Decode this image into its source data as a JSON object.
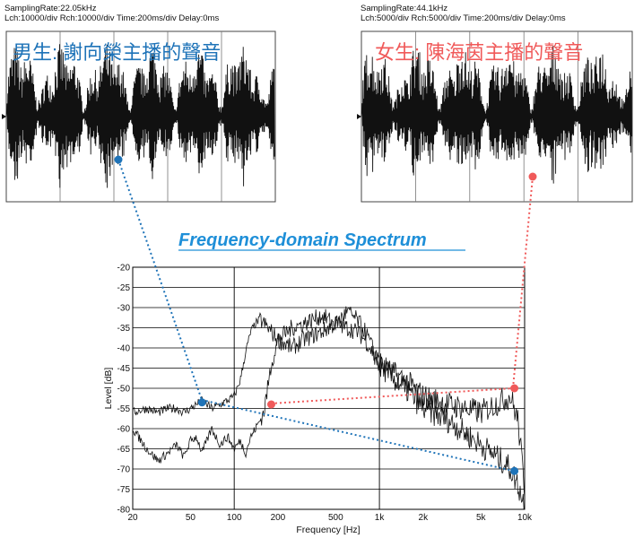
{
  "male_panel": {
    "header_line1": "SamplingRate:22.05kHz",
    "header_line2": "Lch:10000/div  Rch:10000/div  Time:200ms/div  Delay:0ms",
    "title": "男生: 謝向榮主播的聲音",
    "title_color": "#1e73b8"
  },
  "female_panel": {
    "header_line1": "SamplingRate:44.1kHz",
    "header_line2": "Lch:5000/div  Rch:5000/div  Time:200ms/div  Delay:0ms",
    "title": "女生: 陳海茵主播的聲音",
    "title_color": "#f05a5a"
  },
  "spectrum_title": "Frequency-domain Spectrum",
  "spectrum_title_color": "#1e8fd8",
  "colors": {
    "male": "#1e73b8",
    "female": "#f05a5a",
    "grid": "#000000"
  },
  "chart_data": {
    "type": "line",
    "title": "Frequency-domain Spectrum",
    "xlabel": "Frequency [Hz]",
    "ylabel": "Level [dB]",
    "x_scale": "log",
    "xlim": [
      20,
      10000
    ],
    "ylim": [
      -80,
      -20
    ],
    "x_ticks": [
      20,
      50,
      100,
      200,
      500,
      1000,
      2000,
      5000,
      10000
    ],
    "x_tick_labels": [
      "20",
      "50",
      "100",
      "200",
      "500",
      "1k",
      "2k",
      "5k",
      "10k"
    ],
    "y_ticks": [
      -20,
      -25,
      -30,
      -35,
      -40,
      -45,
      -50,
      -55,
      -60,
      -65,
      -70,
      -75,
      -80
    ],
    "grid": true,
    "series": [
      {
        "x": [
          20,
          25,
          30,
          35,
          40,
          45,
          50,
          55,
          60,
          70,
          80,
          90,
          100,
          110,
          120,
          130,
          140,
          150,
          160,
          170,
          180,
          200,
          250,
          300,
          400,
          500,
          600,
          700,
          800,
          1000,
          1200,
          1500,
          2000,
          3000,
          5000,
          7000,
          8000,
          9000,
          10000
        ],
        "y": [
          -56,
          -55,
          -56,
          -55,
          -55,
          -56,
          -55,
          -54,
          -53,
          -55,
          -54,
          -53,
          -52,
          -48,
          -41,
          -36,
          -34,
          -33,
          -34,
          -35,
          -36,
          -38,
          -40,
          -38,
          -36,
          -34,
          -35,
          -36,
          -38,
          -44,
          -46,
          -48,
          -52,
          -54,
          -56,
          -53,
          -52,
          -58,
          -75
        ]
      },
      {
        "x": [
          20,
          25,
          30,
          35,
          40,
          45,
          50,
          55,
          60,
          70,
          80,
          90,
          100,
          110,
          120,
          130,
          140,
          150,
          160,
          170,
          180,
          200,
          250,
          300,
          400,
          500,
          600,
          700,
          800,
          1000,
          1200,
          1500,
          2000,
          3000,
          5000,
          7000,
          8000,
          9000,
          10000
        ],
        "y": [
          -60,
          -65,
          -68,
          -66,
          -64,
          -67,
          -63,
          -62,
          -66,
          -60,
          -64,
          -62,
          -65,
          -63,
          -66,
          -62,
          -60,
          -58,
          -56,
          -50,
          -44,
          -38,
          -35,
          -34,
          -32,
          -34,
          -31,
          -33,
          -36,
          -44,
          -47,
          -50,
          -55,
          -58,
          -64,
          -68,
          -70,
          -74,
          -79
        ]
      }
    ],
    "markers": [
      {
        "x": 60,
        "y": -53.5,
        "color": "#1e73b8"
      },
      {
        "x": 8500,
        "y": -70.5,
        "color": "#1e73b8"
      },
      {
        "x": 180,
        "y": -54,
        "color": "#f05a5a"
      },
      {
        "x": 8500,
        "y": -50,
        "color": "#f05a5a"
      }
    ]
  }
}
